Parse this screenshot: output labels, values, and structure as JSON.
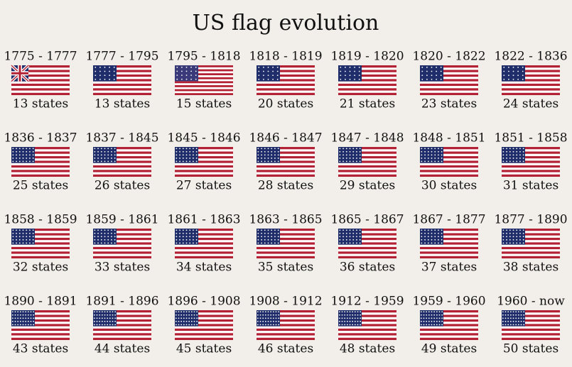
{
  "title": "US flag evolution",
  "flags": [
    {
      "period": "1775 - 1777",
      "states": "13 states"
    },
    {
      "period": "1777 - 1795",
      "states": "13 states"
    },
    {
      "period": "1795 - 1818",
      "states": "15 states"
    },
    {
      "period": "1818 - 1819",
      "states": "20 states"
    },
    {
      "period": "1819 - 1820",
      "states": "21 states"
    },
    {
      "period": "1820 - 1822",
      "states": "23 states"
    },
    {
      "period": "1822 - 1836",
      "states": "24 states"
    },
    {
      "period": "1836 - 1837",
      "states": "25 states"
    },
    {
      "period": "1837 - 1845",
      "states": "26 states"
    },
    {
      "period": "1845 - 1846",
      "states": "27 states"
    },
    {
      "period": "1846 - 1847",
      "states": "28 states"
    },
    {
      "period": "1847 - 1848",
      "states": "29 states"
    },
    {
      "period": "1848 - 1851",
      "states": "30 states"
    },
    {
      "period": "1851 - 1858",
      "states": "31 states"
    },
    {
      "period": "1858 - 1859",
      "states": "32 states"
    },
    {
      "period": "1859 - 1861",
      "states": "33 states"
    },
    {
      "period": "1861 - 1863",
      "states": "34 states"
    },
    {
      "period": "1863 - 1865",
      "states": "35 states"
    },
    {
      "period": "1865 - 1867",
      "states": "36 states"
    },
    {
      "period": "1867 - 1877",
      "states": "37 states"
    },
    {
      "period": "1877 - 1890",
      "states": "38 states"
    },
    {
      "period": "1890 - 1891",
      "states": "43 states"
    },
    {
      "period": "1891 - 1896",
      "states": "44 states"
    },
    {
      "period": "1896 - 1908",
      "states": "45 states"
    },
    {
      "period": "1908 - 1912",
      "states": "46 states"
    },
    {
      "period": "1912 - 1959",
      "states": "48 states"
    },
    {
      "period": "1959 - 1960",
      "states": "49 states"
    },
    {
      "period": "1960 - now",
      "states": "50 states"
    }
  ]
}
